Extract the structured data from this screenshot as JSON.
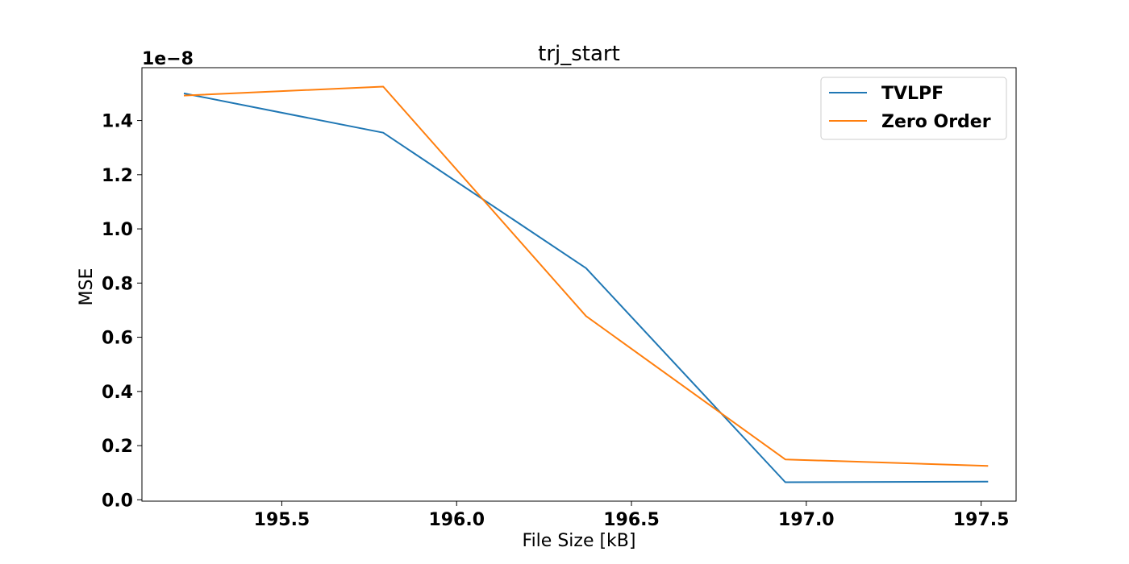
{
  "chart_data": {
    "type": "line",
    "title": "trj_start",
    "xlabel": "File Size [kB]",
    "ylabel": "MSE",
    "y_offset_label": "1e−8",
    "xlim": [
      195.1,
      197.6
    ],
    "ylim": [
      -0.005,
      1.595
    ],
    "x_ticks": [
      195.5,
      196.0,
      196.5,
      197.0,
      197.5
    ],
    "x_tick_labels": [
      "195.5",
      "196.0",
      "196.5",
      "197.0",
      "197.5"
    ],
    "y_ticks": [
      0.0,
      0.2,
      0.4,
      0.6,
      0.8,
      1.0,
      1.2,
      1.4
    ],
    "y_tick_labels": [
      "0.0",
      "0.2",
      "0.4",
      "0.6",
      "0.8",
      "1.0",
      "1.2",
      "1.4"
    ],
    "grid": false,
    "legend_position": "top-right",
    "series": [
      {
        "name": "TVLPF",
        "color": "#1f77b4",
        "x": [
          195.22,
          195.79,
          196.37,
          196.94,
          197.52
        ],
        "y": [
          1.5,
          1.355,
          0.855,
          0.065,
          0.067
        ]
      },
      {
        "name": "Zero Order",
        "color": "#ff7f0e",
        "x": [
          195.22,
          195.79,
          196.37,
          196.94,
          197.52
        ],
        "y": [
          1.492,
          1.525,
          0.678,
          0.149,
          0.125
        ]
      }
    ]
  }
}
